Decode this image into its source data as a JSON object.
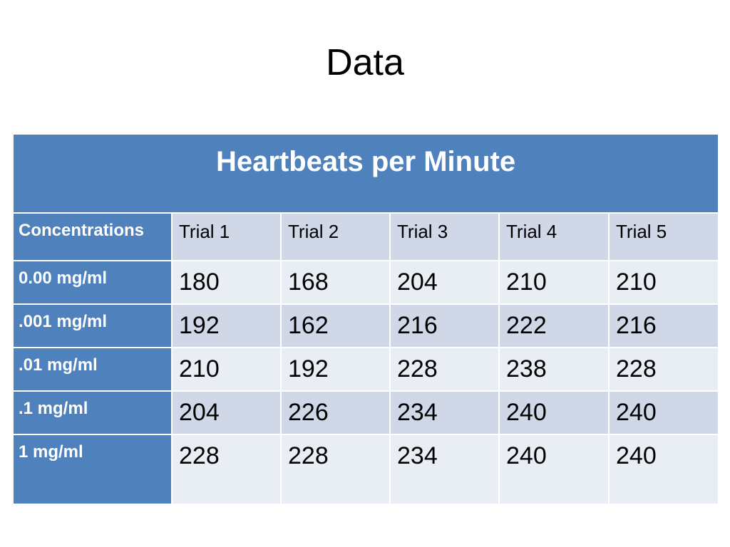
{
  "slide": {
    "title": "Data"
  },
  "table": {
    "caption": "Heartbeats per Minute",
    "columns": [
      "Concentrations",
      "Trial 1",
      "Trial 2",
      "Trial 3",
      "Trial 4",
      "Trial 5"
    ],
    "rows": [
      {
        "label": "0.00 mg/ml",
        "values": [
          "180",
          "168",
          "204",
          "210",
          "210"
        ]
      },
      {
        "label": ".001 mg/ml",
        "values": [
          "192",
          "162",
          "216",
          "222",
          "216"
        ]
      },
      {
        "label": ".01 mg/ml",
        "values": [
          "210",
          "192",
          "228",
          "238",
          "228"
        ]
      },
      {
        "label": ".1 mg/ml",
        "values": [
          "204",
          "226",
          "234",
          "240",
          "240"
        ]
      },
      {
        "label": "1 mg/ml",
        "values": [
          "228",
          "228",
          "234",
          "240",
          "240"
        ]
      }
    ],
    "colors": {
      "header_blue": "#4f81bd",
      "band_dark": "#d0d8e8",
      "band_light": "#e9edf4"
    }
  }
}
